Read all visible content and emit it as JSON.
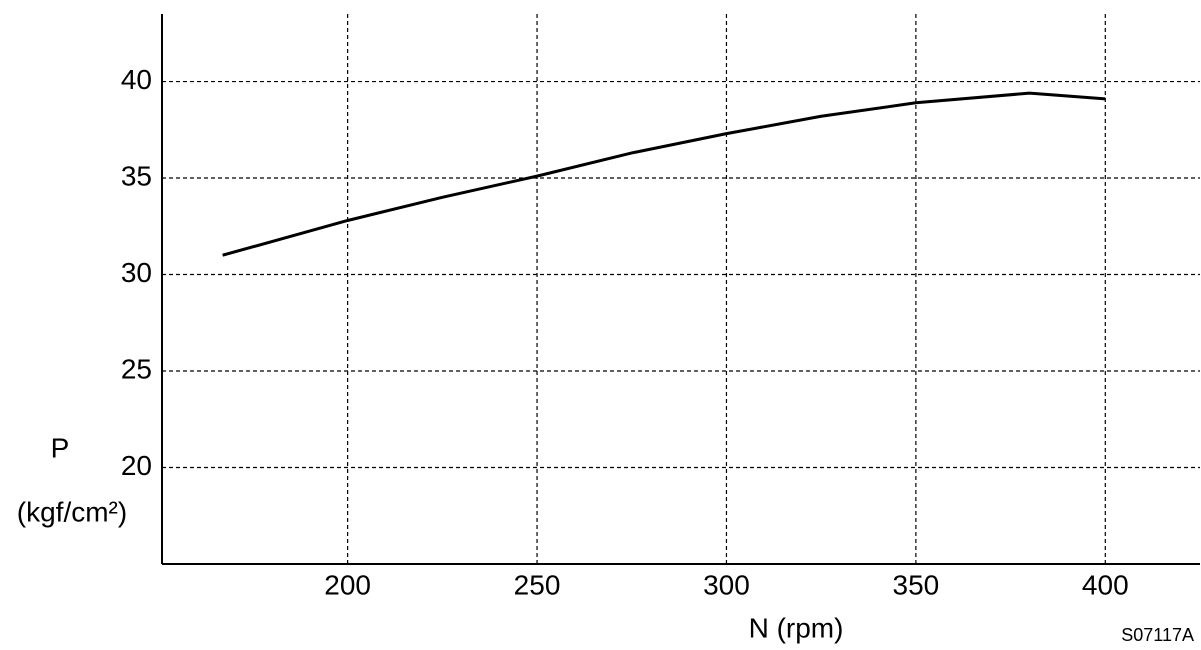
{
  "chart_data": {
    "type": "line",
    "x_label": "N (rpm)",
    "y_label": "P",
    "y_unit": "(kgf/cm²)",
    "code": "S07117A",
    "x": [
      167,
      200,
      225,
      250,
      275,
      300,
      325,
      350,
      380,
      400
    ],
    "series": [
      {
        "color": "#000000",
        "values": [
          31,
          32.8,
          34.0,
          35.1,
          36.3,
          37.3,
          38.2,
          38.9,
          39.4,
          39.1
        ]
      }
    ],
    "xlim": [
      151,
      425
    ],
    "xticks": [
      200,
      250,
      300,
      350,
      400
    ],
    "ylim": [
      15,
      43.5
    ],
    "yticks": [
      20,
      25,
      30,
      35,
      40
    ],
    "grid": true
  }
}
